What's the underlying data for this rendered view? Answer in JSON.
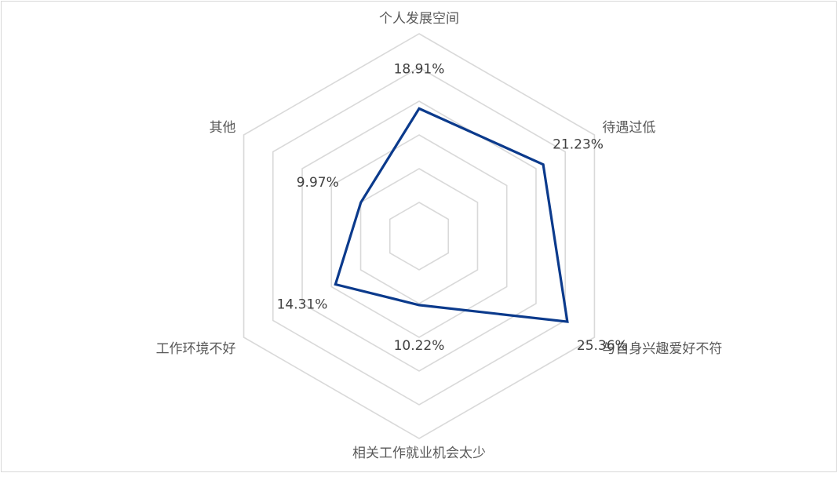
{
  "chart_data": {
    "type": "radar",
    "categories": [
      "个人发展空间",
      "待遇过低",
      "与自身兴趣爱好不符",
      "相关工作就业机会太少",
      "工作环境不好",
      "其他"
    ],
    "series": [
      {
        "values": [
          18.91,
          21.23,
          25.36,
          10.22,
          14.31,
          9.97
        ],
        "data_labels": [
          "18.91%",
          "21.23%",
          "25.36%",
          "10.22%",
          "14.31%",
          "9.97%"
        ]
      }
    ],
    "rlim": [
      0,
      30
    ],
    "grid_rings": 6,
    "grid": true,
    "legend": "none",
    "colors": {
      "series": "#0b3a8c",
      "grid": "#d9d9d9",
      "category_text": "#595959",
      "label_text": "#404040"
    }
  }
}
